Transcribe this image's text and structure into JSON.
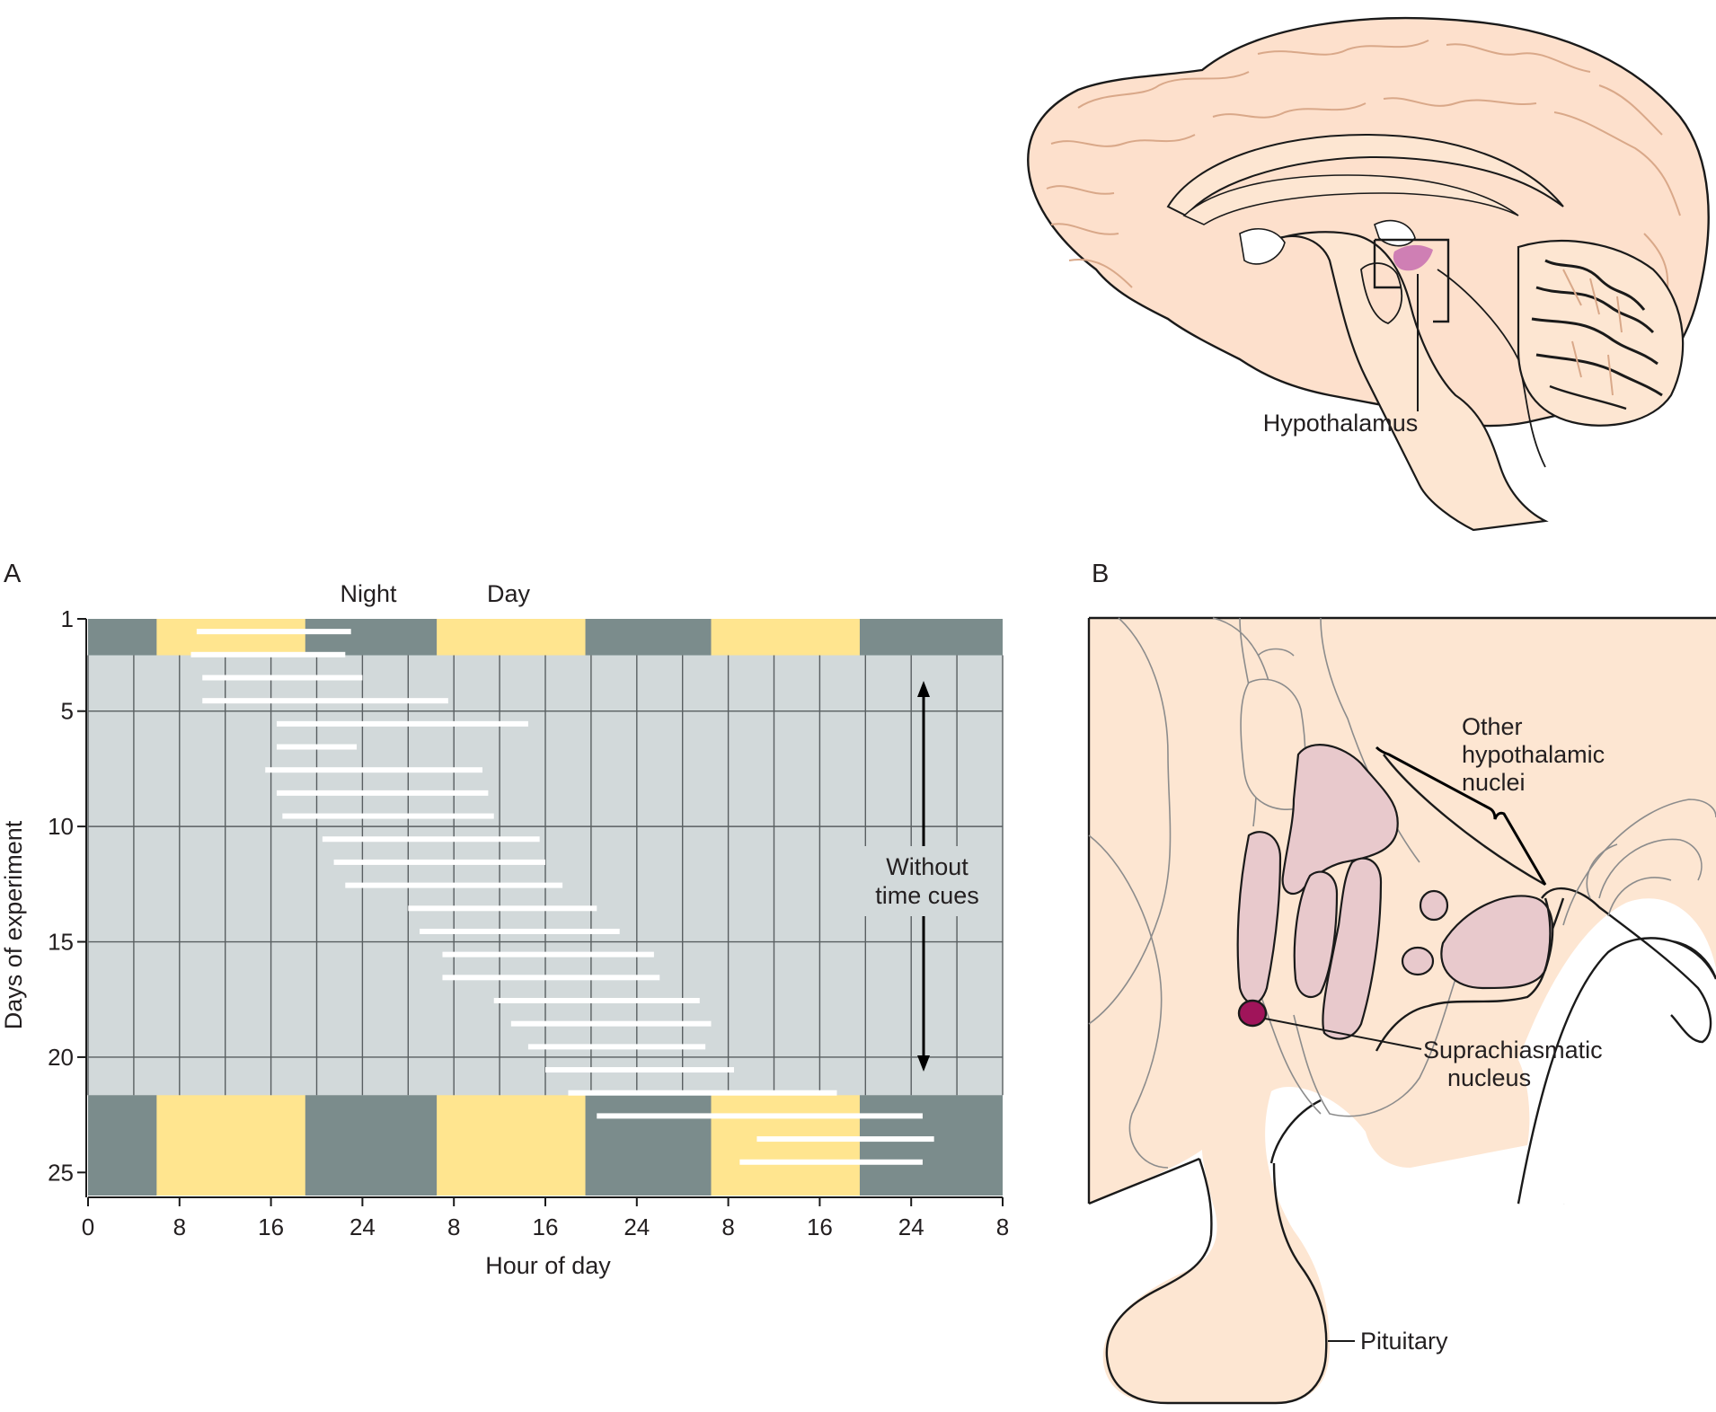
{
  "colors": {
    "dark": "#7b8c8c",
    "light": "#ffe58f",
    "free_run_bg": "#d2d9da",
    "grid": "#595f61",
    "activity": "#ffffff",
    "tissue": "#fde6d2",
    "nucleus": "#e8c9cc",
    "scn": "#a0145a",
    "hypothalamus_highlight": "#cf7fb4"
  },
  "brain": {
    "hypothalamus_label": "Hypothalamus"
  },
  "panel_a": {
    "letter": "A",
    "top_labels": {
      "night": "Night",
      "day": "Day"
    },
    "xlabel": "Hour of day",
    "ylabel": "Days of experiment",
    "arrow_label_1": "Without",
    "arrow_label_2": "time cues",
    "x_ticks": [
      "0",
      "8",
      "16",
      "24",
      "8",
      "16",
      "24",
      "8",
      "16",
      "24",
      "8"
    ],
    "y_ticks": [
      "1",
      "5",
      "10",
      "15",
      "20",
      "25"
    ]
  },
  "panel_b": {
    "letter": "B",
    "other_nuclei": [
      "Other",
      "hypothalamic",
      "nuclei"
    ],
    "scn_label": [
      "Suprachiasmatic",
      "nucleus"
    ],
    "pituitary_label": "Pituitary"
  },
  "chart_data": {
    "type": "actogram",
    "xlabel": "Hour of day",
    "ylabel": "Days of experiment",
    "x_ticks": [
      "0",
      "8",
      "16",
      "24",
      "8",
      "16",
      "24",
      "8",
      "16",
      "24",
      "8"
    ],
    "xlim_hours": [
      0,
      80
    ],
    "y_ticks": [
      1,
      5,
      10,
      15,
      20,
      25
    ],
    "ylim_days": [
      1,
      26
    ],
    "free_running_days": [
      3,
      21
    ],
    "light_periods_hours": [
      [
        6,
        19
      ],
      [
        30.5,
        43.5
      ],
      [
        54.5,
        67.5
      ]
    ],
    "activity": [
      {
        "day": 1,
        "start": 9.5,
        "end": 23
      },
      {
        "day": 2,
        "start": 9,
        "end": 22.5
      },
      {
        "day": 3,
        "start": 10,
        "end": 24
      },
      {
        "day": 4,
        "start": 10,
        "end": 31.5
      },
      {
        "day": 5,
        "start": 16.5,
        "end": 38.5
      },
      {
        "day": 6,
        "start": 16.5,
        "end": 23.5
      },
      {
        "day": 7,
        "start": 15.5,
        "end": 34.5
      },
      {
        "day": 8,
        "start": 16.5,
        "end": 35
      },
      {
        "day": 9,
        "start": 17,
        "end": 35.5
      },
      {
        "day": 10,
        "start": 20.5,
        "end": 39.5
      },
      {
        "day": 11,
        "start": 21.5,
        "end": 40
      },
      {
        "day": 12,
        "start": 22.5,
        "end": 41.5
      },
      {
        "day": 13,
        "start": 28,
        "end": 44.5
      },
      {
        "day": 14,
        "start": 29,
        "end": 46.5
      },
      {
        "day": 15,
        "start": 31,
        "end": 49.5
      },
      {
        "day": 16,
        "start": 31,
        "end": 50
      },
      {
        "day": 17,
        "start": 35.5,
        "end": 53.5
      },
      {
        "day": 18,
        "start": 37,
        "end": 54.5
      },
      {
        "day": 19,
        "start": 38.5,
        "end": 54
      },
      {
        "day": 20,
        "start": 40,
        "end": 56.5
      },
      {
        "day": 21,
        "start": 42,
        "end": 65.5
      },
      {
        "day": 22,
        "start": 44.5,
        "end": 73
      },
      {
        "day": 23,
        "start": 58.5,
        "end": 74
      },
      {
        "day": 24,
        "start": 57,
        "end": 73
      }
    ]
  }
}
